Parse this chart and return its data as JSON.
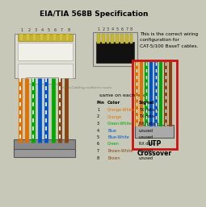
{
  "title": "EIA/TIA 568B Specification",
  "bg_color": "#c8c8b8",
  "text_color": "#000000",
  "correct_wiring_text": "This is the correct wiring\nconfiguration for\nCAT-5/100 BaseT cables.",
  "same_end_text": "same on each end.",
  "watermark_text": "xoticab.Cabling.onilbetre.route",
  "table_header": [
    "Pin",
    "Color",
    "Signal"
  ],
  "table_data": [
    [
      "1",
      "Orange-White",
      "TX data +"
    ],
    [
      "2",
      "Orange",
      "TX data -"
    ],
    [
      "3",
      "Green-White",
      "RX data +"
    ],
    [
      "4",
      "Blue",
      "unused"
    ],
    [
      "5",
      "Blue-White",
      "unused"
    ],
    [
      "6",
      "Green",
      "RX data -"
    ],
    [
      "7",
      "Brown-White",
      "unused"
    ],
    [
      "8",
      "Brown",
      "unused"
    ]
  ],
  "row_colors": [
    "#e07000",
    "#e07000",
    "#00aa00",
    "#0055cc",
    "#0055cc",
    "#00aa00",
    "#884411",
    "#884411"
  ],
  "wire_colors": [
    "#e07000",
    "#e07000",
    "#00aa00",
    "#0055cc",
    "#0055cc",
    "#00aa00",
    "#884411",
    "#884411"
  ],
  "wire_stripe": [
    true,
    false,
    true,
    false,
    true,
    false,
    true,
    false
  ],
  "utp_text": "UTP\nCrossover",
  "pin_numbers": [
    "1",
    "2",
    "3",
    "4",
    "5",
    "6",
    "7",
    "8"
  ],
  "connector_left_bg": "#e0ddd0",
  "connector_right_bg": "#1a1a1a",
  "gold_color": "#c8b830",
  "sheath_color": "#888888",
  "red_box_color": "#cc1111"
}
